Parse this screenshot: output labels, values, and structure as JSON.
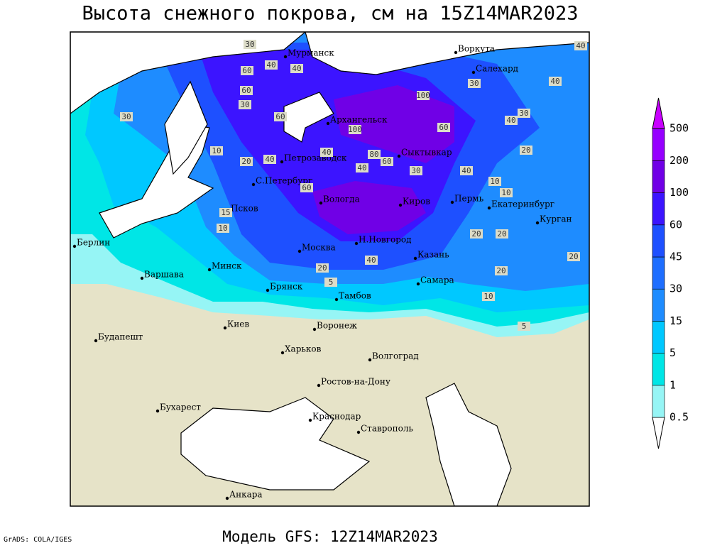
{
  "title": "Высота снежного покрова, см на 15Z14MAR2023",
  "footer": {
    "credit": "GrADS: COLA/IGES",
    "model": "Модель GFS: 12Z14MAR2023"
  },
  "colorbar": {
    "levels": [
      0.5,
      1,
      5,
      15,
      30,
      45,
      60,
      100,
      200,
      500
    ]
  },
  "cities": [
    "Мурманск",
    "Воркута",
    "Салехард",
    "Архангельск",
    "Сыктывкар",
    "Петрозаводск",
    "С.Петербург",
    "Вологда",
    "Киров",
    "Пермь",
    "Екатеринбург",
    "Курган",
    "Псков",
    "Берлин",
    "Варшава",
    "Минск",
    "Москва",
    "Н.Новгород",
    "Казань",
    "Самара",
    "Брянск",
    "Тамбов",
    "Киев",
    "Воронеж",
    "Будапешт",
    "Харьков",
    "Волгоград",
    "Ростов-на-Дону",
    "Бухарест",
    "Краснодар",
    "Ставрополь",
    "Анкара"
  ],
  "contour_labels": [
    30,
    60,
    40,
    30,
    40,
    60,
    30,
    60,
    100,
    40,
    60,
    40,
    10,
    20,
    40,
    60,
    80,
    100,
    60,
    30,
    30,
    40,
    40,
    20,
    30,
    40,
    10,
    10,
    20,
    20,
    20,
    20,
    10,
    5,
    5,
    40,
    20,
    10,
    15,
    40
  ]
}
